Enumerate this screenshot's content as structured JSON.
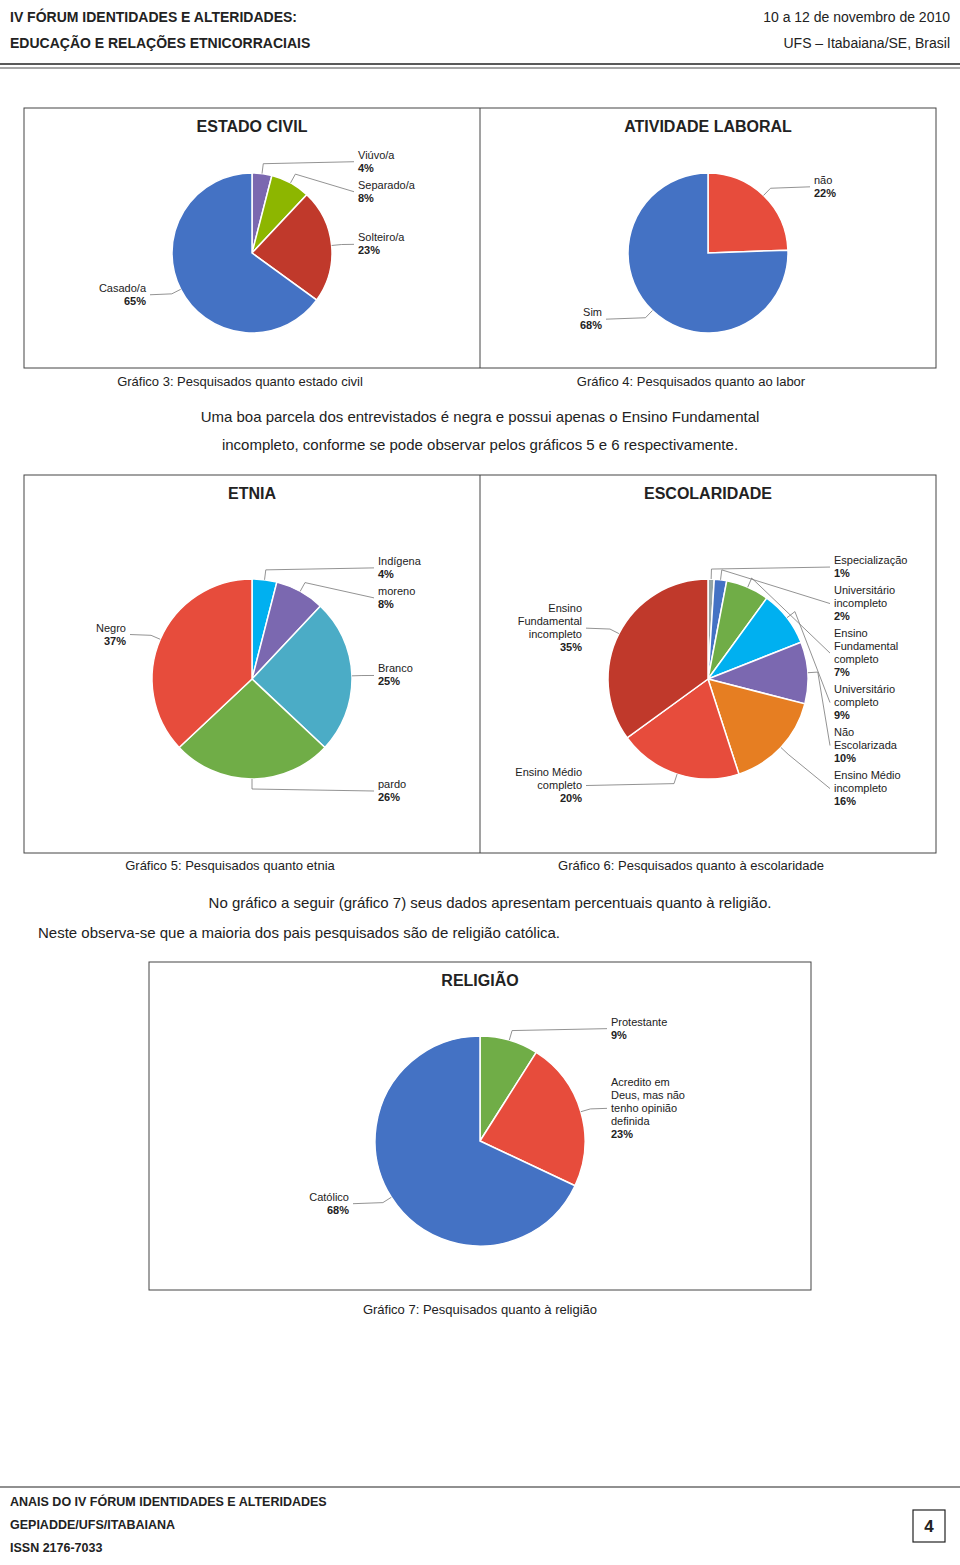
{
  "chart_data": [
    {
      "type": "pie",
      "title": "ESTADO CIVIL",
      "categories": [
        "Viúvo/a",
        "Separado/a",
        "Solteiro/a",
        "Casado/a"
      ],
      "values": [
        4,
        8,
        23,
        65
      ],
      "value_labels": [
        "4%",
        "8%",
        "23%",
        "65%"
      ],
      "colors": [
        "#7B68B0",
        "#8DB600",
        "#C0392B",
        "#4472C4"
      ],
      "data_labels": true,
      "annotations": [
        "Gráfico 3: Pesquisados quanto estado civil"
      ]
    },
    {
      "type": "pie",
      "title": "ATIVIDADE LABORAL",
      "categories": [
        "não",
        "Sim"
      ],
      "values": [
        22,
        68
      ],
      "value_labels": [
        "22%",
        "68%"
      ],
      "colors": [
        "#E74C3C",
        "#4472C4"
      ],
      "data_labels": true,
      "annotations": [
        "Gráfico 4: Pesquisados quanto ao labor"
      ]
    },
    {
      "type": "pie",
      "title": "ETNIA",
      "categories": [
        "Indígena",
        "moreno",
        "Branco",
        "pardo",
        "Negro"
      ],
      "values": [
        4,
        8,
        25,
        26,
        37
      ],
      "value_labels": [
        "4%",
        "8%",
        "25%",
        "26%",
        "37%"
      ],
      "colors": [
        "#00B0F0",
        "#7B68B0",
        "#4BACC6",
        "#70AD47",
        "#E74C3C"
      ],
      "data_labels": true,
      "annotations": [
        "Gráfico 5: Pesquisados quanto etnia"
      ]
    },
    {
      "type": "pie",
      "title": "ESCOLARIDADE",
      "categories": [
        "Especialização",
        "Universitário\nincompleto",
        "Ensino\nFundamental\ncompleto",
        "Universitário\ncompleto",
        "Não\nEscolarizada",
        "Ensino Médio\nincompleto",
        "Ensino Médio\ncompleto",
        "Ensino\nFundamental\nincompleto"
      ],
      "values": [
        1,
        2,
        7,
        9,
        10,
        16,
        20,
        35
      ],
      "value_labels": [
        "1%",
        "2%",
        "7%",
        "9%",
        "10%",
        "16%",
        "20%",
        "35%"
      ],
      "colors": [
        "#95A5A6",
        "#4472C4",
        "#70AD47",
        "#00B0F0",
        "#7B68B0",
        "#E67E22",
        "#E74C3C",
        "#C0392B"
      ],
      "data_labels": true,
      "annotations": [
        "Gráfico 6: Pesquisados quanto à escolaridade"
      ]
    },
    {
      "type": "pie",
      "title": "RELIGIÃO",
      "categories": [
        "Protestante",
        "Acredito em\nDeus, mas não\ntenho opinião\ndefinida",
        "Católico"
      ],
      "values": [
        9,
        23,
        68
      ],
      "value_labels": [
        "9%",
        "23%",
        "68%"
      ],
      "colors": [
        "#70AD47",
        "#E74C3C",
        "#4472C4"
      ],
      "data_labels": true,
      "annotations": [
        "Gráfico 7: Pesquisados quanto à religião"
      ]
    }
  ],
  "page": {
    "header_left": [
      "IV FÓRUM IDENTIDADES E ALTERIDADES:",
      "EDUCAÇÃO E RELAÇÕES ETNICORRACIAIS"
    ],
    "header_right": [
      "10 a 12 de novembro de 2010",
      "UFS – Itabaiana/SE, Brasil"
    ],
    "paragraphs": [
      [
        "Uma boa parcela dos entrevistados é negra e possui apenas o Ensino Fundamental",
        "incompleto, conforme se pode observar pelos gráficos 5 e 6 respectivamente."
      ],
      [
        "No gráfico a seguir (gráfico 7) seus dados apresentam percentuais quanto à religião.",
        "Neste observa-se que a maioria dos pais pesquisados são de  religião católica."
      ]
    ],
    "footer": [
      "ANAIS DO IV FÓRUM IDENTIDADES E ALTERIDADES",
      "GEPIADDE/UFS/ITABAIANA",
      "ISSN 2176-7033"
    ],
    "page_number": "4"
  }
}
